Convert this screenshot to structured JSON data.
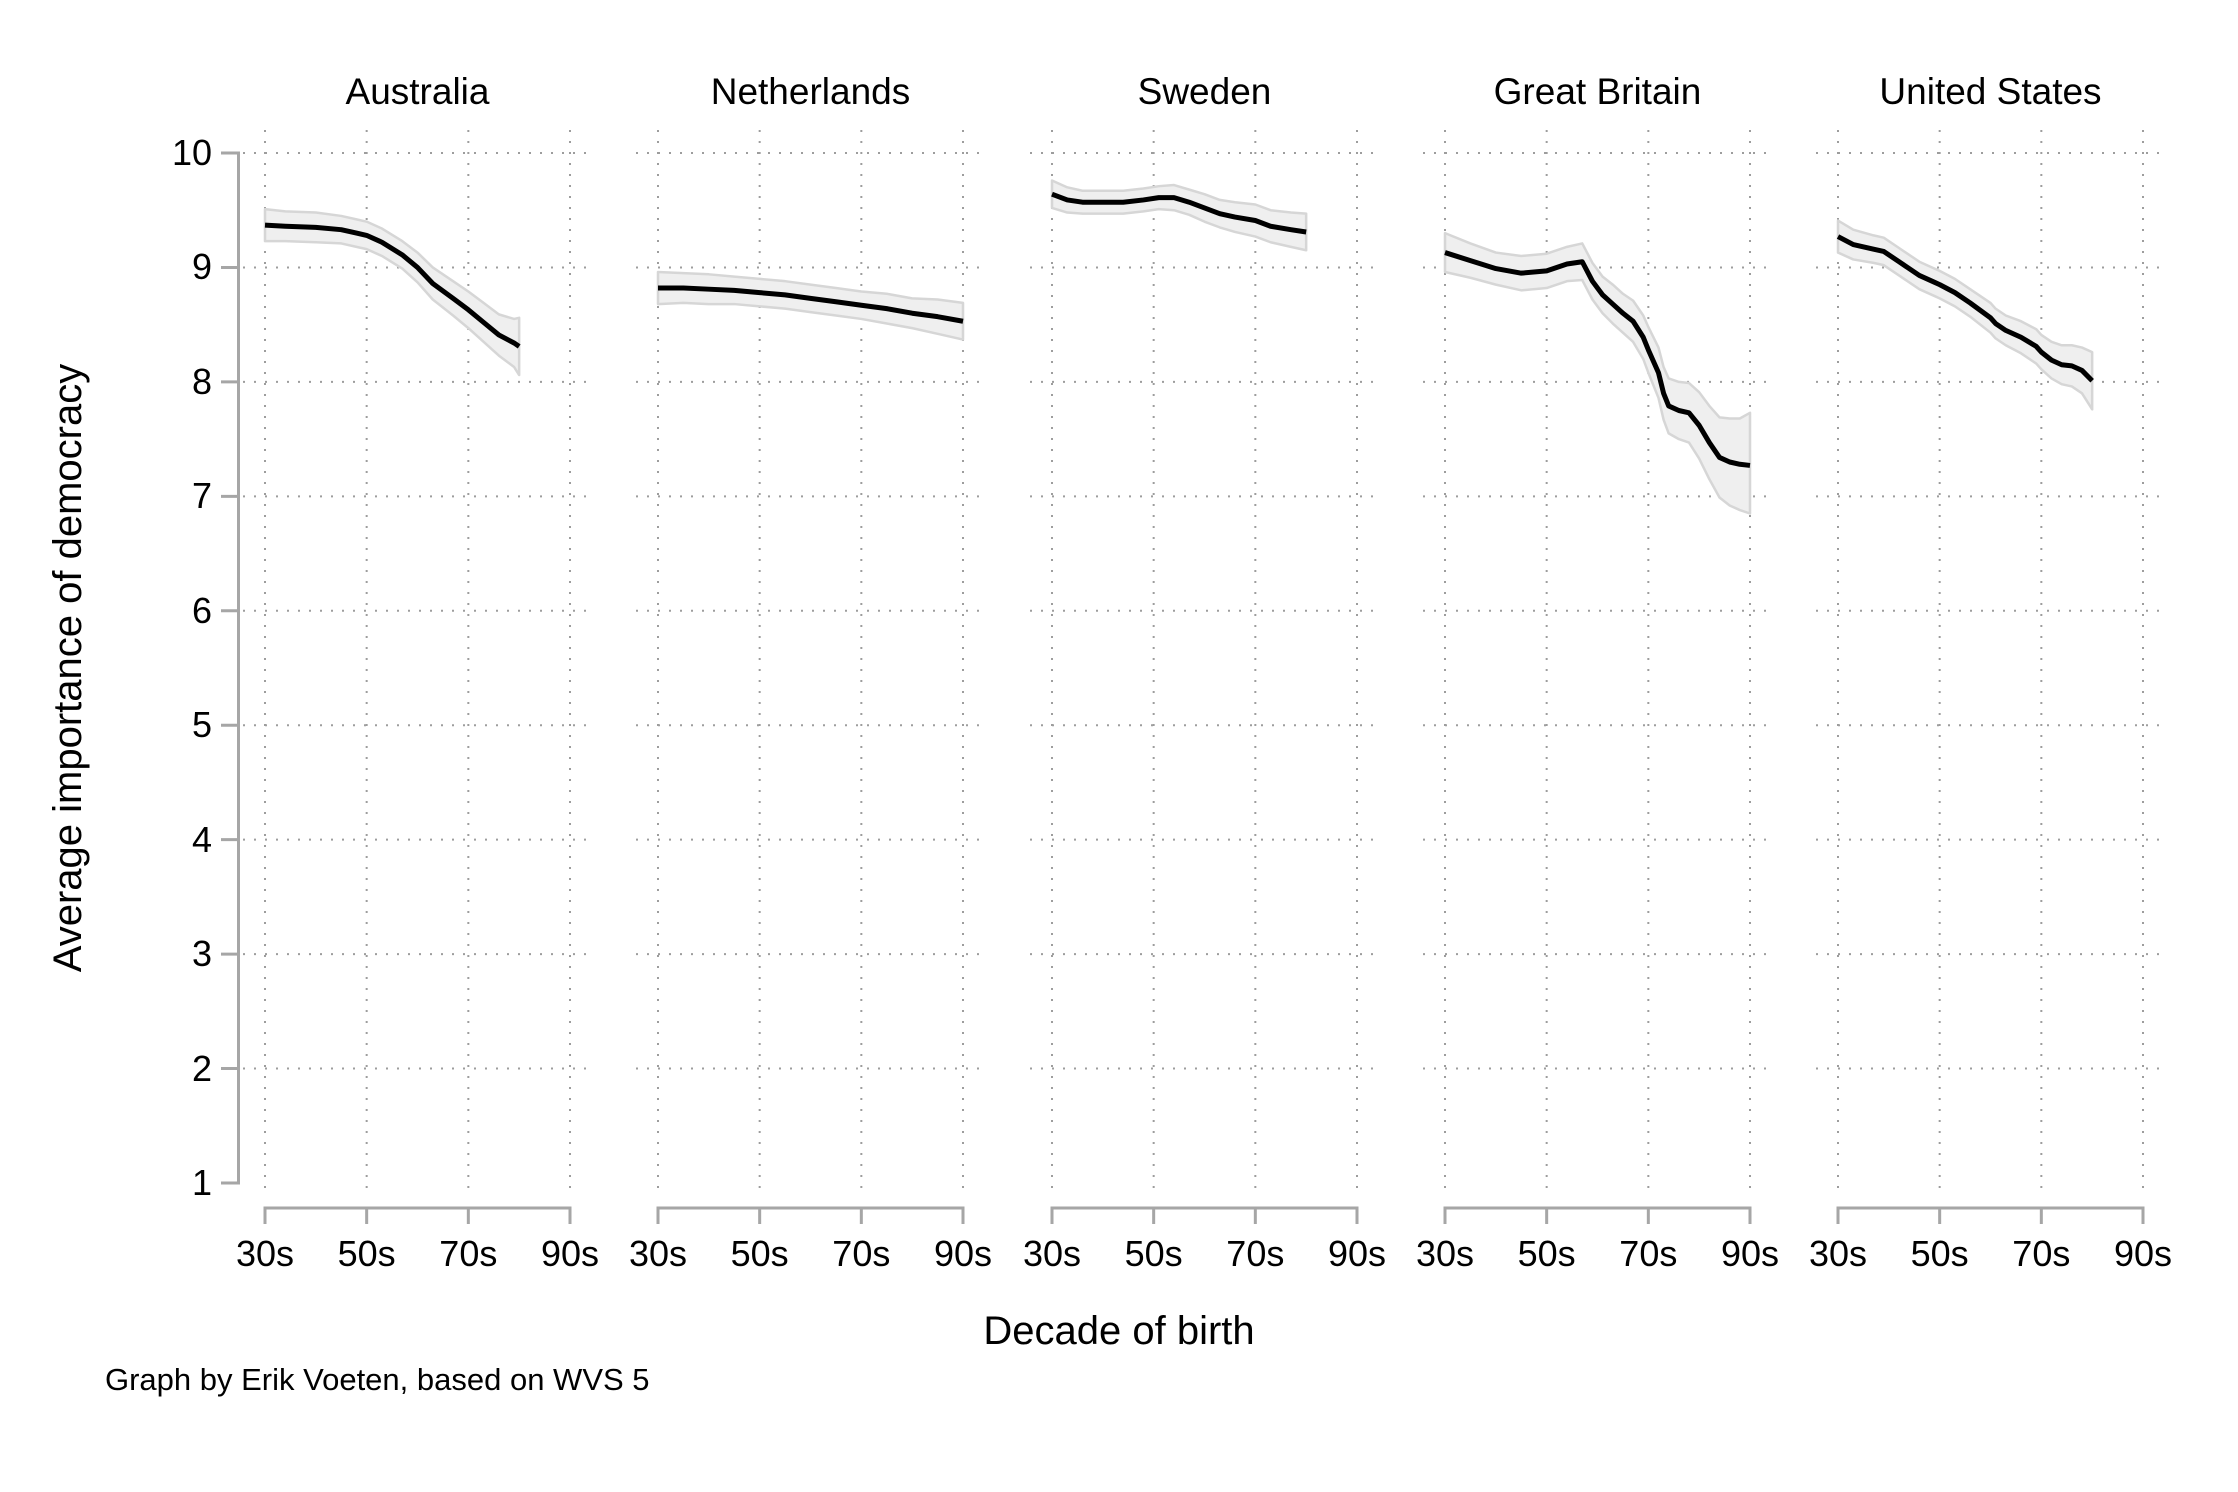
{
  "figure": {
    "ylabel": "Average importance of democracy",
    "xlabel": "Decade of birth",
    "caption": "Graph by Erik Voeten, based on WVS 5"
  },
  "colors": {
    "background": "#ffffff",
    "line": "#000000",
    "band_fill": "#efefef",
    "band_edge": "#d6d6d6",
    "grid_dot": "#9d9d9d",
    "axis": "#a6a6a6",
    "text": "#000000"
  },
  "chart_data": {
    "type": "line",
    "title": "",
    "xlabel": "Decade of birth",
    "ylabel": "Average importance of democracy",
    "ylim": [
      1,
      10
    ],
    "y_ticks": [
      1,
      2,
      3,
      4,
      5,
      6,
      7,
      8,
      9,
      10
    ],
    "x_ticks": [
      {
        "year": 1930,
        "label": "30s"
      },
      {
        "year": 1950,
        "label": "50s"
      },
      {
        "year": 1970,
        "label": "70s"
      },
      {
        "year": 1990,
        "label": "90s"
      }
    ],
    "grid": "dotted, both axes, no gridline at y=1",
    "band": "shaded confidence interval around each line",
    "legend_position": "none",
    "point_format": [
      "year_of_birth",
      "mean",
      "ci_low",
      "ci_high"
    ],
    "panels": [
      {
        "title": "Australia",
        "points": [
          [
            1930,
            9.37,
            9.23,
            9.51
          ],
          [
            1934,
            9.36,
            9.23,
            9.49
          ],
          [
            1940,
            9.35,
            9.22,
            9.48
          ],
          [
            1945,
            9.33,
            9.21,
            9.45
          ],
          [
            1948,
            9.3,
            9.18,
            9.42
          ],
          [
            1950,
            9.28,
            9.16,
            9.4
          ],
          [
            1953,
            9.22,
            9.1,
            9.34
          ],
          [
            1957,
            9.11,
            8.99,
            9.23
          ],
          [
            1960,
            9.0,
            8.87,
            9.13
          ],
          [
            1963,
            8.86,
            8.72,
            9.0
          ],
          [
            1967,
            8.73,
            8.58,
            8.88
          ],
          [
            1970,
            8.63,
            8.47,
            8.79
          ],
          [
            1973,
            8.52,
            8.35,
            8.69
          ],
          [
            1976,
            8.41,
            8.23,
            8.59
          ],
          [
            1979,
            8.34,
            8.13,
            8.55
          ],
          [
            1980,
            8.31,
            8.06,
            8.56
          ]
        ]
      },
      {
        "title": "Netherlands",
        "points": [
          [
            1930,
            8.82,
            8.68,
            8.96
          ],
          [
            1935,
            8.82,
            8.69,
            8.95
          ],
          [
            1940,
            8.81,
            8.68,
            8.94
          ],
          [
            1945,
            8.8,
            8.68,
            8.92
          ],
          [
            1950,
            8.78,
            8.66,
            8.9
          ],
          [
            1955,
            8.76,
            8.64,
            8.88
          ],
          [
            1960,
            8.73,
            8.61,
            8.85
          ],
          [
            1965,
            8.7,
            8.58,
            8.82
          ],
          [
            1970,
            8.67,
            8.55,
            8.79
          ],
          [
            1975,
            8.64,
            8.51,
            8.77
          ],
          [
            1980,
            8.6,
            8.47,
            8.73
          ],
          [
            1985,
            8.57,
            8.42,
            8.72
          ],
          [
            1990,
            8.53,
            8.37,
            8.69
          ]
        ]
      },
      {
        "title": "Sweden",
        "points": [
          [
            1930,
            9.64,
            9.52,
            9.76
          ],
          [
            1933,
            9.59,
            9.48,
            9.7
          ],
          [
            1936,
            9.57,
            9.47,
            9.67
          ],
          [
            1940,
            9.57,
            9.47,
            9.67
          ],
          [
            1944,
            9.57,
            9.47,
            9.67
          ],
          [
            1948,
            9.59,
            9.49,
            9.69
          ],
          [
            1951,
            9.61,
            9.51,
            9.71
          ],
          [
            1954,
            9.61,
            9.5,
            9.72
          ],
          [
            1957,
            9.57,
            9.46,
            9.68
          ],
          [
            1960,
            9.52,
            9.4,
            9.64
          ],
          [
            1963,
            9.47,
            9.35,
            9.59
          ],
          [
            1966,
            9.44,
            9.31,
            9.57
          ],
          [
            1970,
            9.41,
            9.27,
            9.55
          ],
          [
            1973,
            9.36,
            9.22,
            9.5
          ],
          [
            1977,
            9.33,
            9.18,
            9.48
          ],
          [
            1980,
            9.31,
            9.15,
            9.47
          ]
        ]
      },
      {
        "title": "Great Britain",
        "points": [
          [
            1930,
            9.13,
            8.96,
            9.3
          ],
          [
            1935,
            9.06,
            8.91,
            9.21
          ],
          [
            1940,
            8.99,
            8.85,
            9.13
          ],
          [
            1945,
            8.95,
            8.8,
            9.1
          ],
          [
            1950,
            8.97,
            8.82,
            9.12
          ],
          [
            1954,
            9.03,
            8.88,
            9.18
          ],
          [
            1957,
            9.05,
            8.89,
            9.21
          ],
          [
            1959,
            8.88,
            8.72,
            9.04
          ],
          [
            1961,
            8.76,
            8.6,
            8.92
          ],
          [
            1963,
            8.68,
            8.51,
            8.85
          ],
          [
            1965,
            8.6,
            8.43,
            8.77
          ],
          [
            1967,
            8.53,
            8.35,
            8.71
          ],
          [
            1969,
            8.39,
            8.2,
            8.58
          ],
          [
            1970,
            8.28,
            8.08,
            8.48
          ],
          [
            1972,
            8.08,
            7.86,
            8.3
          ],
          [
            1973,
            7.9,
            7.67,
            8.13
          ],
          [
            1974,
            7.79,
            7.55,
            8.03
          ],
          [
            1976,
            7.75,
            7.5,
            8.0
          ],
          [
            1978,
            7.73,
            7.47,
            7.99
          ],
          [
            1980,
            7.62,
            7.33,
            7.91
          ],
          [
            1982,
            7.47,
            7.15,
            7.79
          ],
          [
            1984,
            7.34,
            6.99,
            7.69
          ],
          [
            1986,
            7.3,
            6.92,
            7.68
          ],
          [
            1988,
            7.28,
            6.88,
            7.68
          ],
          [
            1990,
            7.27,
            6.85,
            7.73
          ]
        ]
      },
      {
        "title": "United States",
        "points": [
          [
            1930,
            9.27,
            9.13,
            9.41
          ],
          [
            1933,
            9.2,
            9.07,
            9.33
          ],
          [
            1937,
            9.16,
            9.04,
            9.28
          ],
          [
            1939,
            9.14,
            9.02,
            9.26
          ],
          [
            1942,
            9.05,
            8.93,
            9.17
          ],
          [
            1946,
            8.93,
            8.81,
            9.05
          ],
          [
            1949,
            8.87,
            8.75,
            8.99
          ],
          [
            1950,
            8.85,
            8.73,
            8.97
          ],
          [
            1953,
            8.78,
            8.66,
            8.9
          ],
          [
            1956,
            8.69,
            8.57,
            8.81
          ],
          [
            1960,
            8.56,
            8.43,
            8.69
          ],
          [
            1961,
            8.51,
            8.38,
            8.64
          ],
          [
            1963,
            8.45,
            8.32,
            8.58
          ],
          [
            1966,
            8.39,
            8.25,
            8.53
          ],
          [
            1969,
            8.31,
            8.16,
            8.46
          ],
          [
            1970,
            8.26,
            8.11,
            8.41
          ],
          [
            1972,
            8.19,
            8.03,
            8.35
          ],
          [
            1974,
            8.15,
            7.98,
            8.32
          ],
          [
            1976,
            8.14,
            7.96,
            8.32
          ],
          [
            1978,
            8.1,
            7.9,
            8.3
          ],
          [
            1980,
            8.01,
            7.76,
            8.26
          ]
        ]
      }
    ]
  }
}
